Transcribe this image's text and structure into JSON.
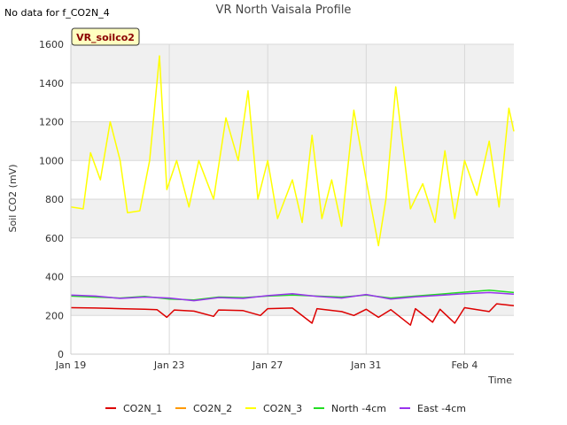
{
  "header": {
    "no_data_note": "No data for f_CO2N_4",
    "badge": "VR_soilco2"
  },
  "chart_data": {
    "type": "line",
    "title": "VR North Vaisala Profile",
    "xlabel": "Time",
    "ylabel": "Soil CO2 (mV)",
    "ylim": [
      0,
      1600
    ],
    "yticks": [
      "0",
      "200",
      "400",
      "600",
      "800",
      "1000",
      "1200",
      "1400",
      "1600"
    ],
    "xlim": [
      "2024-01-19",
      "2024-02-06"
    ],
    "xticks": [
      {
        "date": "2024-01-19",
        "label": "Jan 19"
      },
      {
        "date": "2024-01-23",
        "label": "Jan 23"
      },
      {
        "date": "2024-01-27",
        "label": "Jan 27"
      },
      {
        "date": "2024-01-31",
        "label": "Jan 31"
      },
      {
        "date": "2024-02-04",
        "label": "Feb 4"
      }
    ],
    "grid": true,
    "background": "alternating horizontal grey bands",
    "legend_position": "bottom",
    "series": [
      {
        "name": "CO2N_1",
        "color": "#dd0000",
        "points": [
          [
            "2024-01-19",
            240
          ],
          [
            "2024-01-20",
            238
          ],
          [
            "2024-01-21",
            235
          ],
          [
            "2024-01-22",
            232
          ],
          [
            "2024-01-22.5",
            230
          ],
          [
            "2024-01-22.9",
            190
          ],
          [
            "2024-01-23.2",
            228
          ],
          [
            "2024-01-24",
            222
          ],
          [
            "2024-01-24.8",
            195
          ],
          [
            "2024-01-25",
            228
          ],
          [
            "2024-01-26",
            225
          ],
          [
            "2024-01-26.7",
            200
          ],
          [
            "2024-01-27",
            235
          ],
          [
            "2024-01-28",
            238
          ],
          [
            "2024-01-28.8",
            160
          ],
          [
            "2024-01-29",
            235
          ],
          [
            "2024-01-30",
            220
          ],
          [
            "2024-01-30.5",
            200
          ],
          [
            "2024-01-31",
            232
          ],
          [
            "2024-01-31.5",
            190
          ],
          [
            "2024-02-01",
            230
          ],
          [
            "2024-02-01.8",
            150
          ],
          [
            "2024-02-02",
            235
          ],
          [
            "2024-02-02.7",
            165
          ],
          [
            "2024-02-03",
            232
          ],
          [
            "2024-02-03.6",
            160
          ],
          [
            "2024-02-04",
            240
          ],
          [
            "2024-02-05",
            220
          ],
          [
            "2024-02-05.3",
            260
          ],
          [
            "2024-02-06",
            250
          ]
        ]
      },
      {
        "name": "CO2N_2",
        "color": "#ff9900",
        "points": []
      },
      {
        "name": "CO2N_3",
        "color": "#ffff00",
        "points": [
          [
            "2024-01-19",
            760
          ],
          [
            "2024-01-19.5",
            750
          ],
          [
            "2024-01-19.8",
            1040
          ],
          [
            "2024-01-20.2",
            900
          ],
          [
            "2024-01-20.6",
            1200
          ],
          [
            "2024-01-21",
            1000
          ],
          [
            "2024-01-21.3",
            730
          ],
          [
            "2024-01-21.8",
            740
          ],
          [
            "2024-01-22.2",
            1000
          ],
          [
            "2024-01-22.6",
            1540
          ],
          [
            "2024-01-22.9",
            850
          ],
          [
            "2024-01-23.3",
            1000
          ],
          [
            "2024-01-23.8",
            760
          ],
          [
            "2024-01-24.2",
            1000
          ],
          [
            "2024-01-24.8",
            800
          ],
          [
            "2024-01-25.3",
            1220
          ],
          [
            "2024-01-25.8",
            1000
          ],
          [
            "2024-01-26.2",
            1360
          ],
          [
            "2024-01-26.6",
            800
          ],
          [
            "2024-01-27",
            1000
          ],
          [
            "2024-01-27.4",
            700
          ],
          [
            "2024-01-28",
            900
          ],
          [
            "2024-01-28.4",
            680
          ],
          [
            "2024-01-28.8",
            1130
          ],
          [
            "2024-01-29.2",
            700
          ],
          [
            "2024-01-29.6",
            900
          ],
          [
            "2024-01-30",
            660
          ],
          [
            "2024-01-30.5",
            1260
          ],
          [
            "2024-01-31",
            900
          ],
          [
            "2024-01-31.5",
            560
          ],
          [
            "2024-01-31.8",
            800
          ],
          [
            "2024-02-01.2",
            1380
          ],
          [
            "2024-02-01.8",
            750
          ],
          [
            "2024-02-02.3",
            880
          ],
          [
            "2024-02-02.8",
            680
          ],
          [
            "2024-02-03.2",
            1050
          ],
          [
            "2024-02-03.6",
            700
          ],
          [
            "2024-02-04",
            1000
          ],
          [
            "2024-02-04.5",
            820
          ],
          [
            "2024-02-05",
            1100
          ],
          [
            "2024-02-05.4",
            760
          ],
          [
            "2024-02-05.8",
            1270
          ],
          [
            "2024-02-06",
            1150
          ]
        ]
      },
      {
        "name": "North -4cm",
        "color": "#22dd22",
        "points": [
          [
            "2024-01-19",
            300
          ],
          [
            "2024-01-20",
            295
          ],
          [
            "2024-01-21",
            290
          ],
          [
            "2024-01-22",
            298
          ],
          [
            "2024-01-23",
            285
          ],
          [
            "2024-01-24",
            280
          ],
          [
            "2024-01-25",
            295
          ],
          [
            "2024-01-26",
            292
          ],
          [
            "2024-01-27",
            300
          ],
          [
            "2024-01-28",
            305
          ],
          [
            "2024-01-29",
            300
          ],
          [
            "2024-01-30",
            295
          ],
          [
            "2024-01-31",
            305
          ],
          [
            "2024-02-01",
            290
          ],
          [
            "2024-02-02",
            300
          ],
          [
            "2024-02-03",
            310
          ],
          [
            "2024-02-04",
            320
          ],
          [
            "2024-02-05",
            330
          ],
          [
            "2024-02-06",
            318
          ]
        ]
      },
      {
        "name": "East -4cm",
        "color": "#9933ee",
        "points": [
          [
            "2024-01-19",
            305
          ],
          [
            "2024-01-20",
            300
          ],
          [
            "2024-01-21",
            288
          ],
          [
            "2024-01-22",
            295
          ],
          [
            "2024-01-23",
            290
          ],
          [
            "2024-01-24",
            276
          ],
          [
            "2024-01-25",
            292
          ],
          [
            "2024-01-26",
            288
          ],
          [
            "2024-01-27",
            302
          ],
          [
            "2024-01-28",
            312
          ],
          [
            "2024-01-29",
            298
          ],
          [
            "2024-01-30",
            290
          ],
          [
            "2024-01-31",
            308
          ],
          [
            "2024-02-01",
            285
          ],
          [
            "2024-02-02",
            296
          ],
          [
            "2024-02-03",
            304
          ],
          [
            "2024-02-04",
            312
          ],
          [
            "2024-02-05",
            318
          ],
          [
            "2024-02-06",
            310
          ]
        ]
      }
    ]
  }
}
